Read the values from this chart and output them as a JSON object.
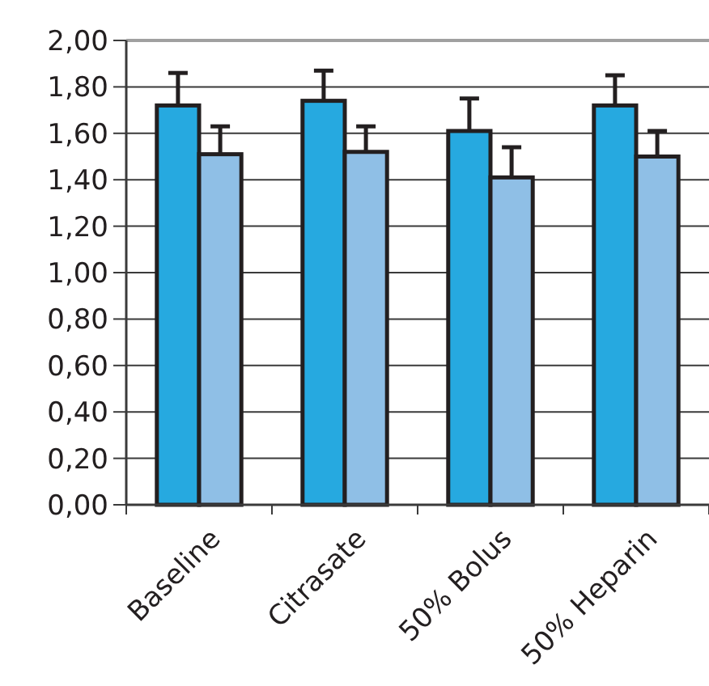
{
  "chart_data": {
    "type": "bar",
    "categories": [
      "Baseline",
      "Citrasate",
      "50% Bolus",
      "50% Heparin"
    ],
    "series": [
      {
        "color": "#26a9e0",
        "values": [
          1.72,
          1.74,
          1.61,
          1.72
        ],
        "errors": [
          [
            1.72,
            1.86
          ],
          [
            1.74,
            1.87
          ],
          [
            1.61,
            1.75
          ],
          [
            1.72,
            1.85
          ]
        ]
      },
      {
        "color": "#8fbfe6",
        "values": [
          1.51,
          1.52,
          1.41,
          1.5
        ],
        "errors": [
          [
            1.51,
            1.63
          ],
          [
            1.52,
            1.63
          ],
          [
            1.41,
            1.54
          ],
          [
            1.5,
            1.61
          ]
        ]
      }
    ],
    "ylim": [
      0,
      2
    ],
    "yticks": [
      {
        "value": 0,
        "label": "0,00"
      },
      {
        "value": 0.2,
        "label": "0,20"
      },
      {
        "value": 0.4,
        "label": "0,40"
      },
      {
        "value": 0.6,
        "label": "0,60"
      },
      {
        "value": 0.8,
        "label": "0,80"
      },
      {
        "value": 1,
        "label": "1,00"
      },
      {
        "value": 1.2,
        "label": "1,20"
      },
      {
        "value": 1.4,
        "label": "1,40"
      },
      {
        "value": 1.6,
        "label": "1,60"
      },
      {
        "value": 1.8,
        "label": "1,80"
      },
      {
        "value": 2,
        "label": "2,00"
      }
    ],
    "grid": "y"
  }
}
